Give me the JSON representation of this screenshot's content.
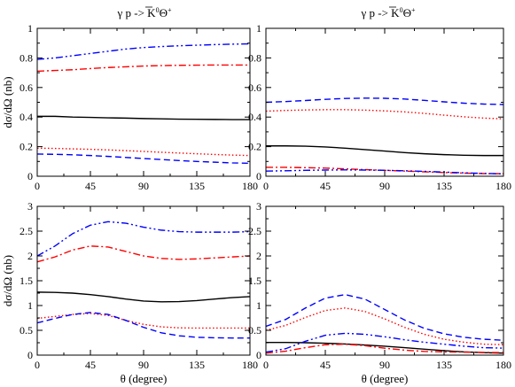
{
  "chart_data": [
    {
      "type": "line",
      "panel": "top-left",
      "title": "γ p -> K̄⁰Θ⁺",
      "title_parts": {
        "lead": "γ p -> ",
        "kbar": "K",
        "kbar_sup": "0",
        "theta": "Θ",
        "theta_sup": "+"
      },
      "xlabel": "",
      "ylabel": "dσ/dΩ (nb)",
      "xlim": [
        0,
        180
      ],
      "ylim": [
        0,
        1
      ],
      "xticks": [
        "0",
        "45",
        "90",
        "135",
        "180"
      ],
      "xtick_values": [
        0,
        45,
        90,
        135,
        180
      ],
      "yticks": [
        "0",
        "0.2",
        "0.4",
        "0.6",
        "0.8",
        "1"
      ],
      "ytick_values": [
        0,
        0.2,
        0.4,
        0.6,
        0.8,
        1
      ],
      "series": [
        {
          "style": "solid",
          "color": "#000000",
          "x": [
            0,
            15,
            30,
            45,
            60,
            75,
            90,
            105,
            120,
            135,
            150,
            165,
            180
          ],
          "y": [
            0.405,
            0.405,
            0.4,
            0.398,
            0.395,
            0.393,
            0.39,
            0.388,
            0.386,
            0.385,
            0.384,
            0.383,
            0.383
          ]
        },
        {
          "style": "dotted",
          "color": "#ff0000",
          "x": [
            0,
            15,
            30,
            45,
            60,
            75,
            90,
            105,
            120,
            135,
            150,
            165,
            180
          ],
          "y": [
            0.19,
            0.188,
            0.185,
            0.182,
            0.178,
            0.173,
            0.168,
            0.162,
            0.157,
            0.152,
            0.147,
            0.143,
            0.14
          ]
        },
        {
          "style": "dashed",
          "color": "#0000ff",
          "x": [
            0,
            15,
            30,
            45,
            60,
            75,
            90,
            105,
            120,
            135,
            150,
            165,
            180
          ],
          "y": [
            0.15,
            0.148,
            0.145,
            0.14,
            0.134,
            0.127,
            0.12,
            0.113,
            0.106,
            0.1,
            0.095,
            0.09,
            0.088
          ]
        },
        {
          "style": "dash-dot",
          "color": "#ff0000",
          "x": [
            0,
            15,
            30,
            45,
            60,
            75,
            90,
            105,
            120,
            135,
            150,
            165,
            180
          ],
          "y": [
            0.71,
            0.715,
            0.72,
            0.728,
            0.735,
            0.74,
            0.745,
            0.748,
            0.75,
            0.751,
            0.752,
            0.752,
            0.752
          ]
        },
        {
          "style": "dash-dot-dot",
          "color": "#0000ff",
          "x": [
            0,
            15,
            30,
            45,
            60,
            75,
            90,
            105,
            120,
            135,
            150,
            165,
            180
          ],
          "y": [
            0.79,
            0.8,
            0.815,
            0.83,
            0.845,
            0.86,
            0.87,
            0.877,
            0.882,
            0.886,
            0.89,
            0.893,
            0.895
          ]
        }
      ]
    },
    {
      "type": "line",
      "panel": "top-right",
      "title": "γ p -> K̄⁰Θ⁺",
      "title_parts": {
        "lead": "γ p -> ",
        "kbar": "K",
        "kbar_sup": "0",
        "theta": "Θ",
        "theta_sup": "+"
      },
      "xlabel": "",
      "ylabel": "",
      "xlim": [
        0,
        180
      ],
      "ylim": [
        0,
        1
      ],
      "xticks": [
        "0",
        "45",
        "90",
        "135",
        "180"
      ],
      "xtick_values": [
        0,
        45,
        90,
        135,
        180
      ],
      "yticks": [
        "0",
        "0.2",
        "0.4",
        "0.6",
        "0.8",
        "1"
      ],
      "ytick_values": [
        0,
        0.2,
        0.4,
        0.6,
        0.8,
        1
      ],
      "series": [
        {
          "style": "solid",
          "color": "#000000",
          "x": [
            0,
            15,
            30,
            45,
            60,
            75,
            90,
            105,
            120,
            135,
            150,
            165,
            180
          ],
          "y": [
            0.205,
            0.205,
            0.203,
            0.198,
            0.19,
            0.18,
            0.17,
            0.16,
            0.152,
            0.146,
            0.142,
            0.14,
            0.14
          ]
        },
        {
          "style": "dotted",
          "color": "#ff0000",
          "x": [
            0,
            15,
            30,
            45,
            60,
            75,
            90,
            105,
            120,
            135,
            150,
            165,
            180
          ],
          "y": [
            0.44,
            0.445,
            0.448,
            0.45,
            0.45,
            0.447,
            0.442,
            0.435,
            0.425,
            0.413,
            0.402,
            0.393,
            0.388
          ]
        },
        {
          "style": "dashed",
          "color": "#0000ff",
          "x": [
            0,
            15,
            30,
            45,
            60,
            75,
            90,
            105,
            120,
            135,
            150,
            165,
            180
          ],
          "y": [
            0.5,
            0.505,
            0.512,
            0.52,
            0.526,
            0.528,
            0.527,
            0.522,
            0.513,
            0.503,
            0.494,
            0.488,
            0.485
          ]
        },
        {
          "style": "dash-dot",
          "color": "#ff0000",
          "x": [
            0,
            15,
            30,
            45,
            60,
            75,
            90,
            105,
            120,
            135,
            150,
            165,
            180
          ],
          "y": [
            0.06,
            0.06,
            0.058,
            0.055,
            0.05,
            0.045,
            0.04,
            0.035,
            0.03,
            0.025,
            0.021,
            0.018,
            0.017
          ]
        },
        {
          "style": "dash-dot-dot",
          "color": "#0000ff",
          "x": [
            0,
            15,
            30,
            45,
            60,
            75,
            90,
            105,
            120,
            135,
            150,
            165,
            180
          ],
          "y": [
            0.035,
            0.037,
            0.04,
            0.042,
            0.043,
            0.042,
            0.04,
            0.037,
            0.033,
            0.028,
            0.023,
            0.019,
            0.016
          ]
        }
      ]
    },
    {
      "type": "line",
      "panel": "bottom-left",
      "title": "",
      "xlabel": "θ  (degree)",
      "ylabel": "dσ/dΩ (nb)",
      "xlim": [
        0,
        180
      ],
      "ylim": [
        0,
        3
      ],
      "xticks": [
        "0",
        "45",
        "90",
        "135",
        "180"
      ],
      "xtick_values": [
        0,
        45,
        90,
        135,
        180
      ],
      "yticks": [
        "0",
        "0.5",
        "1",
        "1.5",
        "2",
        "2.5",
        "3"
      ],
      "ytick_values": [
        0,
        0.5,
        1,
        1.5,
        2,
        2.5,
        3
      ],
      "series": [
        {
          "style": "solid",
          "color": "#000000",
          "x": [
            0,
            15,
            30,
            45,
            60,
            75,
            90,
            105,
            120,
            135,
            150,
            165,
            180
          ],
          "y": [
            1.27,
            1.265,
            1.25,
            1.22,
            1.18,
            1.13,
            1.09,
            1.075,
            1.08,
            1.1,
            1.13,
            1.16,
            1.18
          ]
        },
        {
          "style": "dotted",
          "color": "#ff0000",
          "x": [
            0,
            15,
            30,
            45,
            60,
            75,
            90,
            105,
            120,
            135,
            150,
            165,
            180
          ],
          "y": [
            0.74,
            0.78,
            0.82,
            0.84,
            0.8,
            0.7,
            0.62,
            0.57,
            0.55,
            0.545,
            0.545,
            0.545,
            0.545
          ]
        },
        {
          "style": "dashed",
          "color": "#0000ff",
          "x": [
            0,
            15,
            30,
            45,
            60,
            75,
            90,
            105,
            120,
            135,
            150,
            165,
            180
          ],
          "y": [
            0.65,
            0.74,
            0.82,
            0.86,
            0.82,
            0.7,
            0.56,
            0.45,
            0.39,
            0.36,
            0.35,
            0.345,
            0.345
          ]
        },
        {
          "style": "dash-dot",
          "color": "#ff0000",
          "x": [
            0,
            15,
            30,
            45,
            60,
            75,
            90,
            105,
            120,
            135,
            150,
            165,
            180
          ],
          "y": [
            1.88,
            1.98,
            2.12,
            2.2,
            2.18,
            2.09,
            2.0,
            1.95,
            1.93,
            1.94,
            1.96,
            1.98,
            2.0
          ]
        },
        {
          "style": "dash-dot-dot",
          "color": "#0000ff",
          "x": [
            0,
            15,
            30,
            45,
            60,
            75,
            90,
            105,
            120,
            135,
            150,
            165,
            180
          ],
          "y": [
            2.0,
            2.2,
            2.45,
            2.62,
            2.69,
            2.66,
            2.58,
            2.52,
            2.49,
            2.48,
            2.48,
            2.48,
            2.49
          ]
        }
      ]
    },
    {
      "type": "line",
      "panel": "bottom-right",
      "title": "",
      "xlabel": "θ  (degree)",
      "ylabel": "",
      "xlim": [
        0,
        180
      ],
      "ylim": [
        0,
        3
      ],
      "xticks": [
        "0",
        "45",
        "90",
        "135",
        "180"
      ],
      "xtick_values": [
        0,
        45,
        90,
        135,
        180
      ],
      "yticks": [
        "0",
        "0.5",
        "1",
        "1.5",
        "2",
        "2.5",
        "3"
      ],
      "ytick_values": [
        0,
        0.5,
        1,
        1.5,
        2,
        2.5,
        3
      ],
      "series": [
        {
          "style": "solid",
          "color": "#000000",
          "x": [
            0,
            15,
            30,
            45,
            60,
            75,
            90,
            105,
            120,
            135,
            150,
            165,
            180
          ],
          "y": [
            0.255,
            0.255,
            0.25,
            0.24,
            0.225,
            0.205,
            0.18,
            0.15,
            0.12,
            0.09,
            0.065,
            0.05,
            0.04
          ]
        },
        {
          "style": "dotted",
          "color": "#ff0000",
          "x": [
            0,
            15,
            30,
            45,
            60,
            75,
            90,
            105,
            120,
            135,
            150,
            165,
            180
          ],
          "y": [
            0.5,
            0.6,
            0.76,
            0.9,
            0.95,
            0.88,
            0.73,
            0.56,
            0.42,
            0.32,
            0.26,
            0.22,
            0.21
          ]
        },
        {
          "style": "dashed",
          "color": "#0000ff",
          "x": [
            0,
            15,
            30,
            45,
            60,
            75,
            90,
            105,
            120,
            135,
            150,
            165,
            180
          ],
          "y": [
            0.58,
            0.72,
            0.95,
            1.15,
            1.22,
            1.13,
            0.92,
            0.71,
            0.54,
            0.43,
            0.36,
            0.32,
            0.3
          ]
        },
        {
          "style": "dash-dot",
          "color": "#ff0000",
          "x": [
            0,
            15,
            30,
            45,
            60,
            75,
            90,
            105,
            120,
            135,
            150,
            165,
            180
          ],
          "y": [
            0.04,
            0.08,
            0.15,
            0.21,
            0.22,
            0.19,
            0.14,
            0.1,
            0.075,
            0.065,
            0.06,
            0.055,
            0.05
          ]
        },
        {
          "style": "dash-dot-dot",
          "color": "#0000ff",
          "x": [
            0,
            15,
            30,
            45,
            60,
            75,
            90,
            105,
            120,
            135,
            150,
            165,
            180
          ],
          "y": [
            0.06,
            0.13,
            0.28,
            0.4,
            0.44,
            0.42,
            0.37,
            0.31,
            0.26,
            0.22,
            0.18,
            0.15,
            0.14
          ]
        }
      ]
    }
  ]
}
